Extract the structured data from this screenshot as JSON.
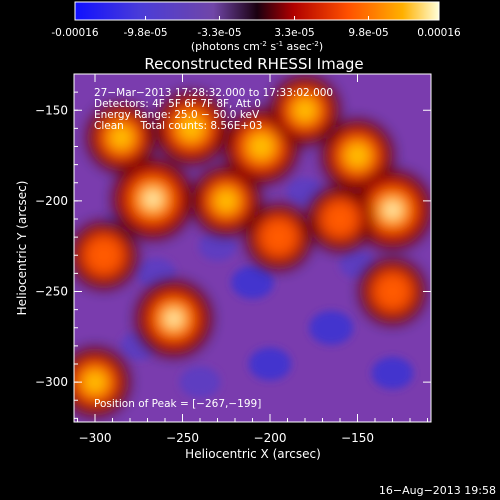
{
  "colorbar": {
    "min": -0.00016,
    "max": 0.00016,
    "tick_labels": [
      "-0.00016",
      "-9.8e-05",
      "-3.3e-05",
      "3.3e-05",
      "9.8e-05",
      "0.00016"
    ],
    "tick_values": [
      -0.00016,
      -9.8e-05,
      -3.3e-05,
      3.3e-05,
      9.8e-05,
      0.00016
    ],
    "units": "(photons cm",
    "units_exp1": "-2",
    "units_mid": " s",
    "units_exp2": "-1",
    "units_end": " asec",
    "units_exp3": "-2",
    "units_close": ")"
  },
  "chart_data": {
    "type": "heatmap",
    "title": "Reconstructed RHESSI Image",
    "xlabel": "Heliocentric X (arcsec)",
    "ylabel": "Heliocentric Y (arcsec)",
    "xlim": [
      -312,
      -108
    ],
    "ylim": [
      -322,
      -130
    ],
    "x_ticks": [
      -300,
      -250,
      -200,
      -150
    ],
    "y_ticks": [
      -300,
      -250,
      -200,
      -150
    ],
    "x_tick_labels": [
      "−300",
      "−250",
      "−200",
      "−150"
    ],
    "y_tick_labels": [
      "−300",
      "−250",
      "−200",
      "−150"
    ],
    "peak": [
      -267,
      -199
    ],
    "hot_spots": [
      {
        "x": -267,
        "y": -199,
        "v": 1.0
      },
      {
        "x": -285,
        "y": -165,
        "v": 0.6
      },
      {
        "x": -245,
        "y": -160,
        "v": 0.75
      },
      {
        "x": -205,
        "y": -170,
        "v": 0.8
      },
      {
        "x": -180,
        "y": -150,
        "v": 0.6
      },
      {
        "x": -150,
        "y": -175,
        "v": 0.7
      },
      {
        "x": -130,
        "y": -205,
        "v": 0.95
      },
      {
        "x": -225,
        "y": -200,
        "v": 0.6
      },
      {
        "x": -195,
        "y": -220,
        "v": 0.5
      },
      {
        "x": -255,
        "y": -265,
        "v": 0.85
      },
      {
        "x": -300,
        "y": -300,
        "v": 0.6
      },
      {
        "x": -130,
        "y": -250,
        "v": 0.5
      },
      {
        "x": -295,
        "y": -230,
        "v": 0.55
      },
      {
        "x": -160,
        "y": -210,
        "v": 0.45
      }
    ],
    "cold_spots": [
      {
        "x": -285,
        "y": -215,
        "v": 0.8
      },
      {
        "x": -265,
        "y": -240,
        "v": 0.7
      },
      {
        "x": -210,
        "y": -245,
        "v": 0.9
      },
      {
        "x": -165,
        "y": -270,
        "v": 1.0
      },
      {
        "x": -130,
        "y": -295,
        "v": 0.85
      },
      {
        "x": -240,
        "y": -300,
        "v": 0.8
      },
      {
        "x": -200,
        "y": -290,
        "v": 0.9
      },
      {
        "x": -180,
        "y": -195,
        "v": 0.55
      },
      {
        "x": -275,
        "y": -280,
        "v": 0.55
      },
      {
        "x": -230,
        "y": -225,
        "v": 0.6
      },
      {
        "x": -150,
        "y": -235,
        "v": 0.5
      }
    ]
  },
  "annotations": {
    "line1": "27−Mar−2013 17:28:32.000 to 17:33:02.000",
    "line2": "Detectors: 4F 5F 6F 7F 8F, Att 0",
    "line3": "Energy Range: 25.0 − 50.0 keV",
    "line4": "Clean     Total counts: 8.56E+03",
    "peak_label": "Position of Peak = [−267,−199]"
  },
  "footer": {
    "timestamp": "16−Aug−2013 19:58"
  }
}
